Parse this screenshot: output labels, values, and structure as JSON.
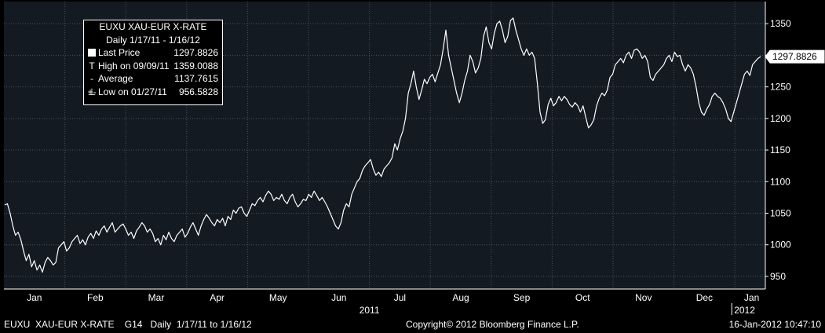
{
  "legend": {
    "ticker": "EUXU  XAU-EUR X-RATE",
    "range": "Daily 1/17/11 - 1/16/12",
    "rows": [
      {
        "symbol": "box",
        "label": "Last Price",
        "value": "1297.8826"
      },
      {
        "symbol": "T",
        "label": "High on 09/09/11",
        "value": "1359.0088"
      },
      {
        "symbol": "-+-",
        "label": "Average",
        "value": "1137.7615"
      },
      {
        "symbol": "⊥",
        "label": "Low on 01/27/11",
        "value": "956.5828"
      }
    ]
  },
  "footer": {
    "left": "EUXU  XAU-EUR X-RATE    G14   Daily  1/17/11 to 1/16/12",
    "center": "Copyright© 2012 Bloomberg Finance L.P.",
    "right": "16-Jan-2012 10:47:10"
  },
  "chart_data": {
    "type": "line",
    "title": "",
    "xlabel": "",
    "ylabel": "",
    "ylim": [
      930,
      1385
    ],
    "yticks": [
      950,
      1000,
      1050,
      1100,
      1150,
      1200,
      1250,
      1300,
      1350
    ],
    "months": [
      "Jan",
      "Feb",
      "Mar",
      "Apr",
      "May",
      "Jun",
      "Jul",
      "Aug",
      "Sep",
      "Oct",
      "Nov",
      "Dec",
      "Jan"
    ],
    "year_labels": [
      "2011",
      "2012"
    ],
    "last_value_label": "1297.8826",
    "grid": true,
    "series": [
      {
        "values": [
          1063,
          1065,
          1050,
          1030,
          1015,
          1020,
          1008,
          990,
          975,
          985,
          965,
          975,
          960,
          968,
          956.58,
          972,
          980,
          975,
          968,
          972,
          995,
          1000,
          1005,
          990,
          995,
          1005,
          1010,
          1015,
          1002,
          1008,
          1000,
          1012,
          1018,
          1010,
          1022,
          1015,
          1025,
          1030,
          1020,
          1028,
          1035,
          1020,
          1025,
          1030,
          1033,
          1025,
          1015,
          1020,
          1010,
          1022,
          1028,
          1035,
          1030,
          1020,
          1025,
          1018,
          1005,
          1010,
          1000,
          1015,
          1008,
          1020,
          1010,
          1005,
          1015,
          1020,
          1025,
          1012,
          1018,
          1028,
          1035,
          1025,
          1015,
          1030,
          1040,
          1048,
          1042,
          1035,
          1030,
          1040,
          1035,
          1042,
          1030,
          1045,
          1040,
          1055,
          1050,
          1058,
          1060,
          1050,
          1045,
          1055,
          1065,
          1062,
          1070,
          1075,
          1068,
          1078,
          1085,
          1080,
          1070,
          1075,
          1072,
          1080,
          1070,
          1065,
          1075,
          1080,
          1068,
          1060,
          1065,
          1072,
          1070,
          1080,
          1075,
          1085,
          1078,
          1070,
          1075,
          1068,
          1060,
          1050,
          1040,
          1030,
          1025,
          1035,
          1055,
          1065,
          1060,
          1080,
          1090,
          1100,
          1105,
          1118,
          1125,
          1130,
          1135,
          1120,
          1110,
          1115,
          1108,
          1120,
          1125,
          1130,
          1138,
          1160,
          1150,
          1168,
          1180,
          1200,
          1240,
          1255,
          1275,
          1250,
          1230,
          1245,
          1262,
          1255,
          1265,
          1270,
          1258,
          1272,
          1285,
          1310,
          1340,
          1300,
          1280,
          1260,
          1240,
          1225,
          1240,
          1260,
          1275,
          1300,
          1290,
          1272,
          1280,
          1295,
          1330,
          1345,
          1320,
          1310,
          1335,
          1350,
          1354,
          1340,
          1320,
          1330,
          1355,
          1359.01,
          1340,
          1325,
          1310,
          1300,
          1310,
          1300,
          1305,
          1295,
          1255,
          1210,
          1192,
          1198,
          1222,
          1232,
          1220,
          1225,
          1235,
          1228,
          1235,
          1230,
          1222,
          1218,
          1225,
          1220,
          1210,
          1220,
          1202,
          1185,
          1190,
          1198,
          1220,
          1232,
          1240,
          1236,
          1245,
          1265,
          1270,
          1285,
          1290,
          1295,
          1288,
          1300,
          1305,
          1295,
          1308,
          1310,
          1305,
          1295,
          1300,
          1290,
          1265,
          1260,
          1270,
          1275,
          1280,
          1285,
          1295,
          1300,
          1290,
          1305,
          1298,
          1300,
          1285,
          1275,
          1285,
          1280,
          1270,
          1250,
          1225,
          1210,
          1205,
          1215,
          1222,
          1235,
          1240,
          1235,
          1232,
          1225,
          1215,
          1200,
          1195,
          1210,
          1225,
          1240,
          1255,
          1270,
          1275,
          1268,
          1285,
          1290,
          1295,
          1297.88
        ]
      }
    ]
  }
}
